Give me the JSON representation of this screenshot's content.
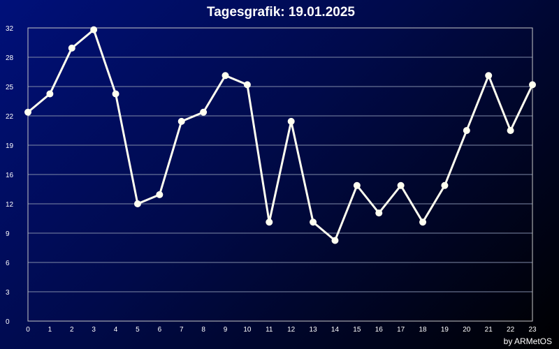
{
  "chart_data": {
    "type": "line",
    "title": "Tagesgrafik: 19.01.2025",
    "xlabel": "",
    "ylabel": "",
    "x": [
      0,
      1,
      2,
      3,
      4,
      5,
      6,
      7,
      8,
      9,
      10,
      11,
      12,
      13,
      14,
      15,
      16,
      17,
      18,
      19,
      20,
      21,
      22,
      23
    ],
    "y_ticks": [
      0,
      3,
      6,
      9,
      12,
      16,
      19,
      22,
      25,
      28,
      32
    ],
    "ylim": [
      0,
      32
    ],
    "xlim": [
      0,
      23
    ],
    "series": [
      {
        "values": [
          22.8,
          24.8,
          29.8,
          31.8,
          24.8,
          12.8,
          13.8,
          21.8,
          22.8,
          26.8,
          25.8,
          10.8,
          21.8,
          10.8,
          8.8,
          14.8,
          11.8,
          14.8,
          10.8,
          14.8,
          20.8,
          26.8,
          20.8,
          25.8
        ],
        "color": "#fffff0"
      }
    ],
    "grid": true,
    "legend": "none",
    "colors": {
      "background_start": "#00107a",
      "background_end": "#000000",
      "grid": "#7f8aa8",
      "line": "#fffff0",
      "text": "#ffffff"
    }
  },
  "credit": "by ARMetOS"
}
